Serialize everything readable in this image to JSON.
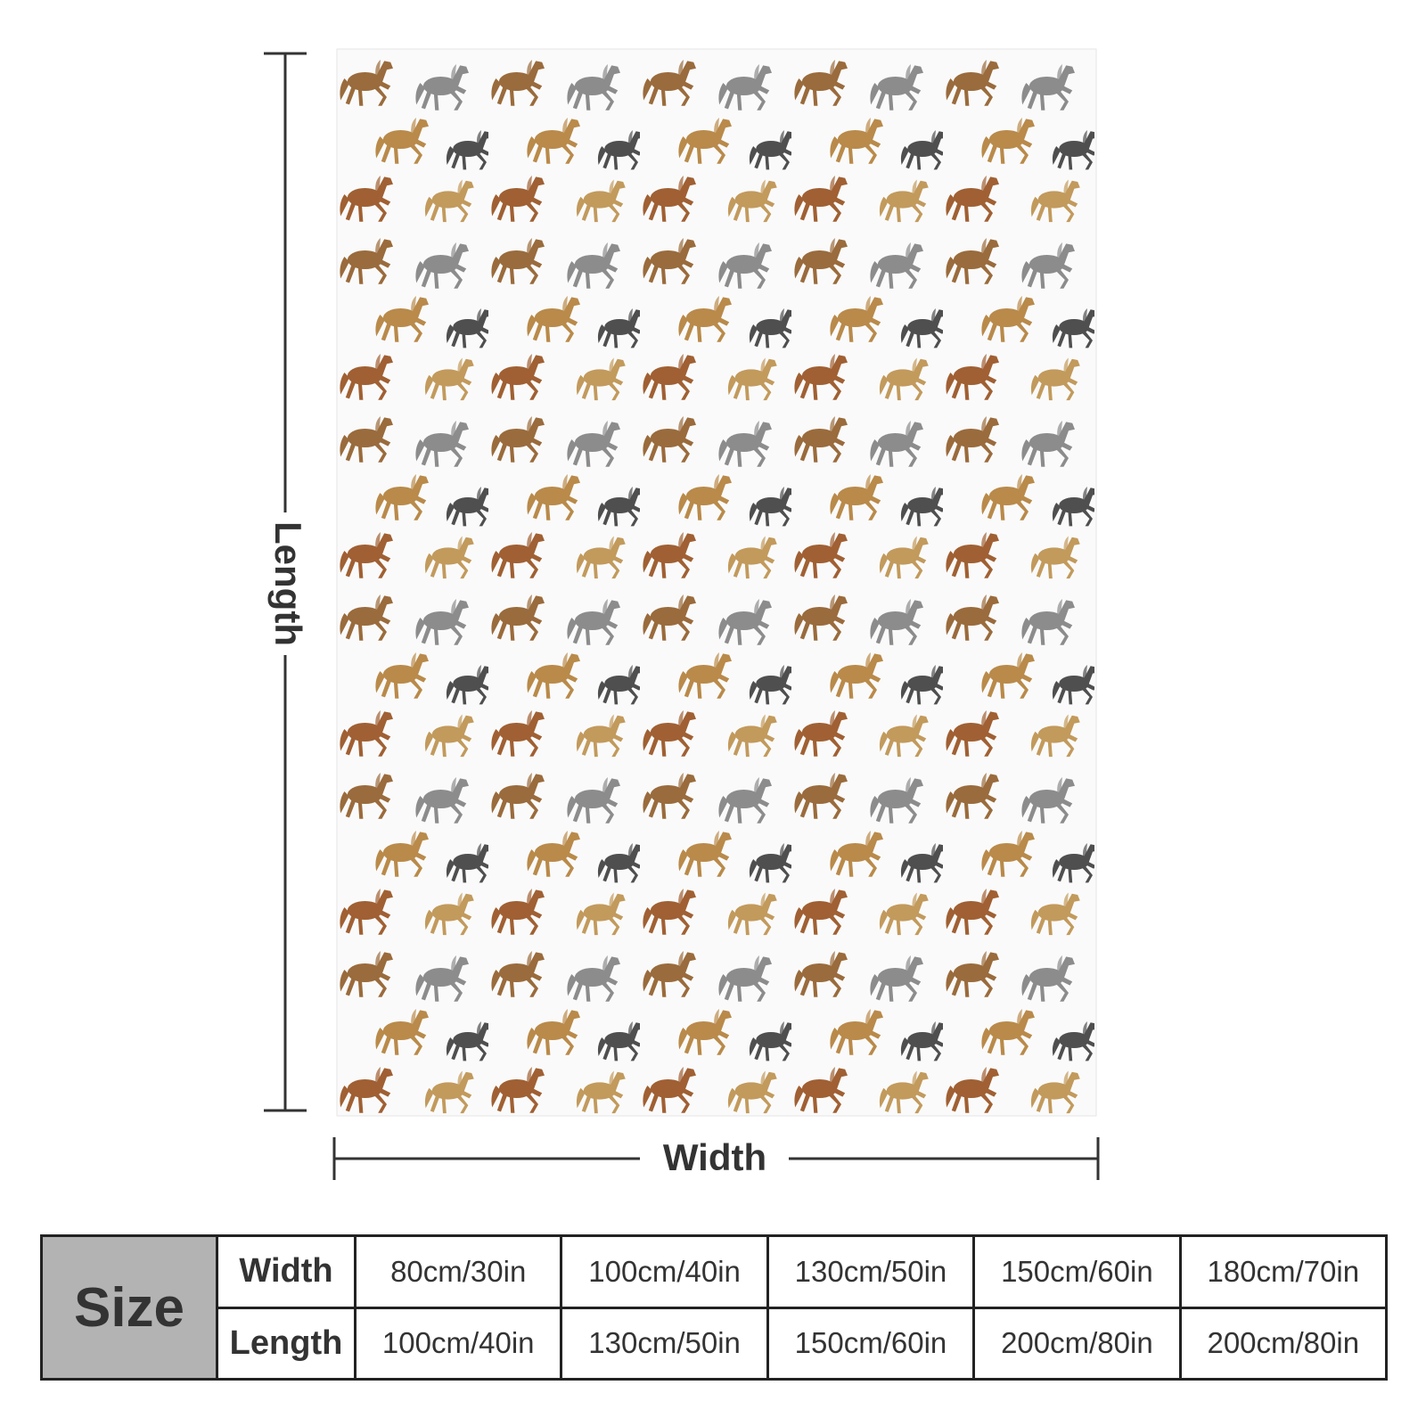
{
  "dimensions": {
    "length_label": "Length",
    "width_label": "Width"
  },
  "table": {
    "corner": "Size",
    "row_headers": [
      "Width",
      "Length"
    ],
    "rows": [
      [
        "80cm/30in",
        "100cm/40in",
        "130cm/50in",
        "150cm/60in",
        "180cm/70in"
      ],
      [
        "100cm/40in",
        "130cm/50in",
        "150cm/60in",
        "200cm/80in",
        "200cm/80in"
      ]
    ]
  }
}
